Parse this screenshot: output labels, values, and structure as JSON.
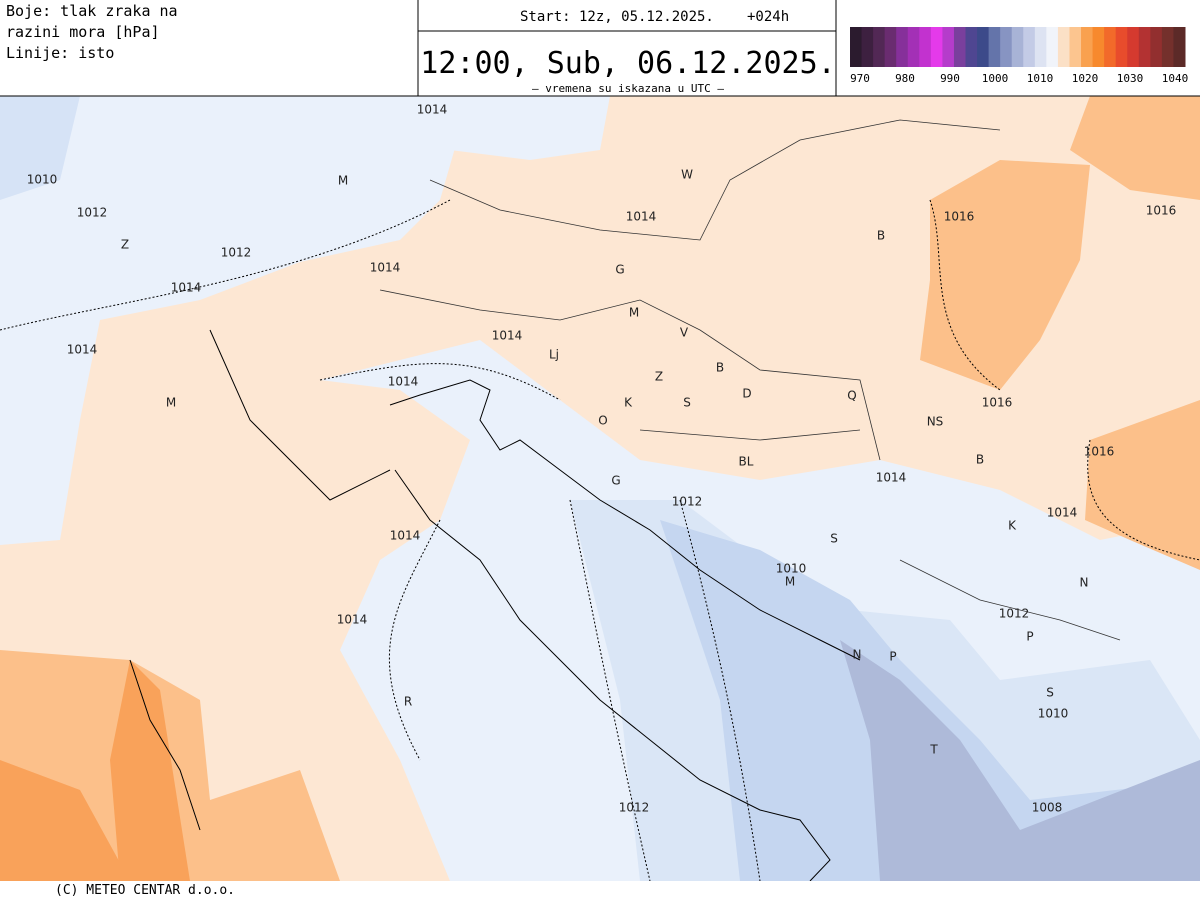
{
  "header": {
    "legend_lines": [
      "Boje: tlak zraka na",
      "razini mora [hPa]",
      "Linije: isto"
    ],
    "start": "Start: 12z, 05.12.2025.",
    "lead": "+024h",
    "valid_time": "12:00, Sub, 06.12.2025.",
    "note": "– vremena su iskazana u UTC –"
  },
  "colorbar": {
    "colors": [
      "#2b1b2e",
      "#3d2040",
      "#522855",
      "#6a2c70",
      "#86309a",
      "#a330b6",
      "#c232cf",
      "#e43aea",
      "#b53ccb",
      "#7a3f9d",
      "#4f4691",
      "#3c4a8a",
      "#6474aa",
      "#8794c2",
      "#a8b3d6",
      "#c3cbe6",
      "#dde3f2",
      "#f1f4fa",
      "#fbe0c6",
      "#fcc58f",
      "#f9a14f",
      "#f7892d",
      "#f26a2a",
      "#e84c2c",
      "#d53a2f",
      "#b33232",
      "#922f2f",
      "#74302c",
      "#5c2a28"
    ],
    "labels": [
      970,
      980,
      990,
      1000,
      1010,
      1020,
      1030,
      1040
    ]
  },
  "map": {
    "labels": [
      "1014",
      "1010",
      "M",
      "W",
      "1012",
      "1014",
      "1016",
      "1016",
      "Z",
      "1012",
      "B",
      "1014",
      "G",
      "1014",
      "M",
      "V",
      "1014",
      "1014",
      "Lj",
      "Z",
      "B",
      "1014",
      "D",
      "Q",
      "M",
      "K",
      "S",
      "O",
      "NS",
      "1016",
      "BL",
      "G",
      "B",
      "1016",
      "1014",
      "1012",
      "1014",
      "K",
      "1014",
      "S",
      "1010",
      "M",
      "N",
      "1012",
      "1014",
      "P",
      "N",
      "P",
      "S",
      "1010",
      "R",
      "T",
      "1008",
      "1012"
    ]
  },
  "footer": "(C) METEO CENTAR d.o.o."
}
